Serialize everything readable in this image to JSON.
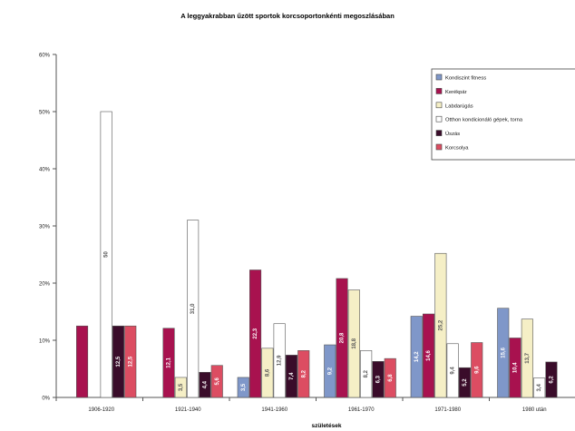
{
  "chart_data": {
    "type": "bar",
    "title": "A leggyakrabban űzött sportok korcsoportonkénti megoszlásában",
    "xlabel": "születések",
    "ylabel": "",
    "ylim": [
      0,
      60
    ],
    "yticks": [
      "0%",
      "10%",
      "20%",
      "30%",
      "40%",
      "50%",
      "60%"
    ],
    "grid": false,
    "legend_position": "top-right",
    "categories": [
      "1906-1920",
      "1921-1940",
      "1941-1960",
      "1961-1970",
      "1971-1980",
      "1980 után"
    ],
    "series": [
      {
        "name": "Kondiszint fitness",
        "color": "#7f97c9",
        "values": [
          0,
          0,
          3.5,
          9.2,
          14.2,
          15.6
        ]
      },
      {
        "name": "Kerékpár",
        "color": "#a8124f",
        "values": [
          12.5,
          12.1,
          22.3,
          20.8,
          14.6,
          10.4
        ]
      },
      {
        "name": "Labdarúgás",
        "color": "#f5efc6",
        "values": [
          0,
          3.5,
          8.6,
          18.8,
          25.2,
          13.7
        ]
      },
      {
        "name": "Otthon kondicionáló gépek, torna",
        "color": "#ffffff",
        "values": [
          50.0,
          31.0,
          12.9,
          8.2,
          9.4,
          3.4
        ]
      },
      {
        "name": "Úszás",
        "color": "#3a0c2a",
        "values": [
          12.5,
          4.4,
          7.4,
          6.3,
          5.2,
          6.2
        ]
      },
      {
        "name": "Korcsolya",
        "color": "#dc4d62",
        "values": [
          12.5,
          5.6,
          8.2,
          6.8,
          9.6,
          0
        ]
      }
    ],
    "data_labels": [
      [
        "",
        "",
        "",
        "50",
        "12,5",
        "12,5"
      ],
      [
        "",
        "12,1",
        "3,5",
        "31,0",
        "4,4",
        "5,6"
      ],
      [
        "3,5",
        "22,3",
        "8,6",
        "12,9",
        "7,4",
        "8,2"
      ],
      [
        "9,2",
        "20,8",
        "18,8",
        "8,2",
        "6,3",
        "6,8"
      ],
      [
        "14,2",
        "14,6",
        "25,2",
        "9,4",
        "5,2",
        "9,6"
      ],
      [
        "15,6",
        "10,4",
        "13,7",
        "3,4",
        "6,2",
        ""
      ]
    ]
  }
}
